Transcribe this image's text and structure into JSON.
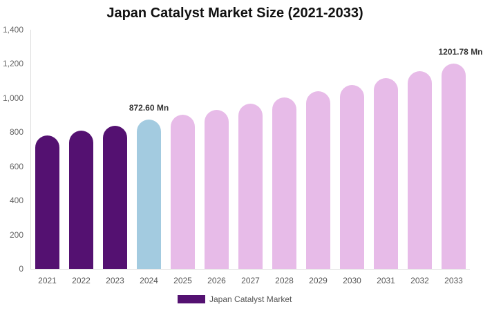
{
  "chart_data": {
    "type": "bar",
    "title": "Japan Catalyst Market Size (2021-2033)",
    "xlabel": "",
    "ylabel": "",
    "categories": [
      "2021",
      "2022",
      "2023",
      "2024",
      "2025",
      "2026",
      "2027",
      "2028",
      "2029",
      "2030",
      "2031",
      "2032",
      "2033"
    ],
    "series": [
      {
        "name": "Japan Catalyst Market",
        "values": [
          781,
          809,
          838,
          872.6,
          902,
          932,
          966,
          1003,
          1040,
          1077,
          1116,
          1158,
          1201.78
        ]
      }
    ],
    "ylim": [
      0,
      1400
    ],
    "yticks": [
      "0",
      "200",
      "400",
      "600",
      "800",
      "1,000",
      "1,200",
      "1,400"
    ],
    "grid": false,
    "legend_position": "bottom",
    "annotations": [
      {
        "category": "2024",
        "text": "872.60 Mn"
      },
      {
        "category": "2033",
        "text": "1201.78 Mn"
      }
    ],
    "bar_colors": {
      "historical": "#541171",
      "base_year": "#A3CBE0",
      "forecast": "#E7BBE8"
    },
    "bar_color_by_category": [
      "#541171",
      "#541171",
      "#541171",
      "#A3CBE0",
      "#E7BBE8",
      "#E7BBE8",
      "#E7BBE8",
      "#E7BBE8",
      "#E7BBE8",
      "#E7BBE8",
      "#E7BBE8",
      "#E7BBE8",
      "#E7BBE8"
    ]
  },
  "legend": {
    "label": "Japan Catalyst Market",
    "color": "#541171"
  }
}
